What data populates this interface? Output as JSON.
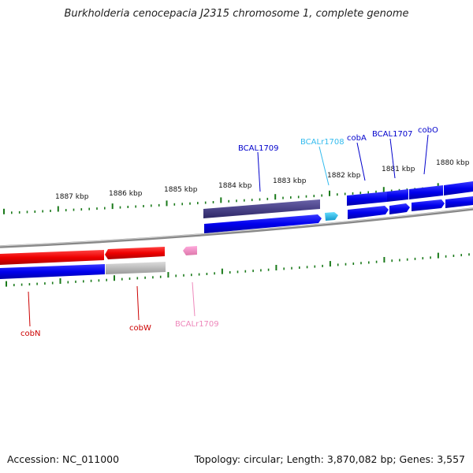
{
  "title": "Burkholderia cenocepacia J2315 chromosome 1, complete genome",
  "footer": {
    "accession": "Accession: NC_011000",
    "summary": "Topology: circular; Length: 3,870,082 bp; Genes: 3,557"
  },
  "scale_labels": [
    "1887 kbp",
    "1886 kbp",
    "1885 kbp",
    "1884 kbp",
    "1883 kbp",
    "1882 kbp",
    "1881 kbp",
    "1880 kbp"
  ],
  "genes_top": [
    {
      "name": "BCAL1709",
      "color": "#0000cc"
    },
    {
      "name": "BCALr1708",
      "color": "#33bbee"
    },
    {
      "name": "cobA",
      "color": "#0000cc"
    },
    {
      "name": "BCAL1707",
      "color": "#0000cc"
    },
    {
      "name": "cobO",
      "color": "#0000cc"
    }
  ],
  "genes_bottom": [
    {
      "name": "cobN",
      "color": "#cc0000"
    },
    {
      "name": "cobW",
      "color": "#cc0000"
    },
    {
      "name": "BCALr1709",
      "color": "#ee88bb"
    }
  ],
  "colors": {
    "forward_cds": "#0000ee",
    "reverse_cds": "#ee0000",
    "pseudo_gene": "#4a4388",
    "grey_feature": "#b8b8b8",
    "rrna_top": "#33bbee",
    "rrna_bottom": "#ee88bb",
    "tick": "#1a7a1a",
    "backbone": "#777777"
  }
}
